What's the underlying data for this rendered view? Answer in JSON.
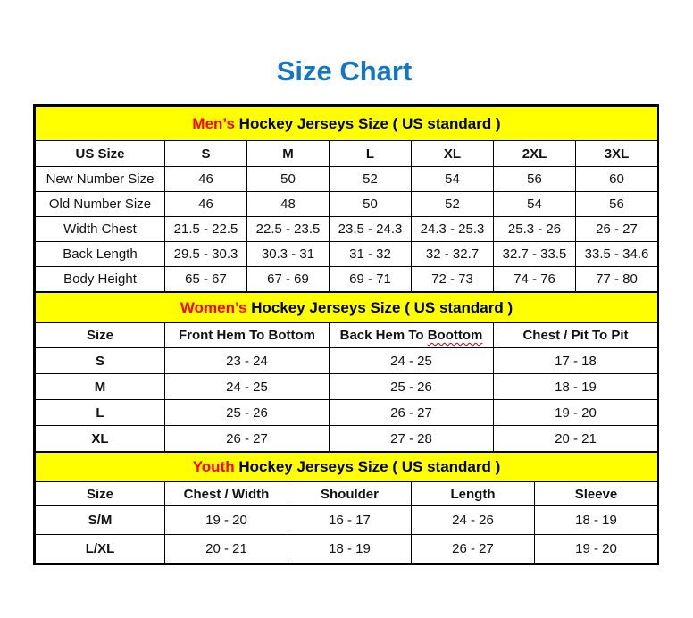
{
  "page": {
    "title": "Size Chart"
  },
  "colors": {
    "title_blue": "#1276c8",
    "banner_yellow": "#ffff00",
    "accent_red": "#ff0000",
    "border_black": "#000000"
  },
  "mens": {
    "banner": {
      "prefix": "Men’s",
      "rest": " Hockey Jerseys Size ( US standard )"
    },
    "header": [
      "US Size",
      "S",
      "M",
      "L",
      "XL",
      "2XL",
      "3XL"
    ],
    "rows": [
      {
        "label": "New Number Size",
        "values": [
          "46",
          "50",
          "52",
          "54",
          "56",
          "60"
        ]
      },
      {
        "label": "Old Number Size",
        "values": [
          "46",
          "48",
          "50",
          "52",
          "54",
          "56"
        ]
      },
      {
        "label": "Width Chest",
        "values": [
          "21.5 - 22.5",
          "22.5 - 23.5",
          "23.5 - 24.3",
          "24.3 - 25.3",
          "25.3 - 26",
          "26 - 27"
        ]
      },
      {
        "label": "Back Length",
        "values": [
          "29.5 - 30.3",
          "30.3 - 31",
          "31 - 32",
          "32 - 32.7",
          "32.7 - 33.5",
          "33.5 - 34.6"
        ]
      },
      {
        "label": "Body Height",
        "values": [
          "65 - 67",
          "67 - 69",
          "69 - 71",
          "72 - 73",
          "74 - 76",
          "77 - 80"
        ]
      }
    ]
  },
  "womens": {
    "banner": {
      "prefix": "Women’s",
      "rest": " Hockey Jerseys Size ( US standard )"
    },
    "header": [
      "Size",
      "Front Hem To Bottom",
      "Back Hem To Boottom",
      "Chest / Pit To Pit"
    ],
    "header_parts": {
      "back_hem_prefix": "Back Hem To ",
      "back_hem_misspelled": "Boottom"
    },
    "rows": [
      {
        "label": "S",
        "values": [
          "23 - 24",
          "24 - 25",
          "17 - 18"
        ]
      },
      {
        "label": "M",
        "values": [
          "24 - 25",
          "25 - 26",
          "18 - 19"
        ]
      },
      {
        "label": "L",
        "values": [
          "25 - 26",
          "26 - 27",
          "19 - 20"
        ]
      },
      {
        "label": "XL",
        "values": [
          "26 - 27",
          "27 - 28",
          "20 - 21"
        ]
      }
    ]
  },
  "youth": {
    "banner": {
      "prefix": "Youth",
      "rest": " Hockey Jerseys Size ( US standard )"
    },
    "header": [
      "Size",
      "Chest / Width",
      "Shoulder",
      "Length",
      "Sleeve"
    ],
    "rows": [
      {
        "label": "S/M",
        "values": [
          "19 - 20",
          "16 - 17",
          "24 - 26",
          "18 - 19"
        ]
      },
      {
        "label": "L/XL",
        "values": [
          "20 - 21",
          "18 - 19",
          "26 - 27",
          "19 - 20"
        ]
      }
    ]
  }
}
